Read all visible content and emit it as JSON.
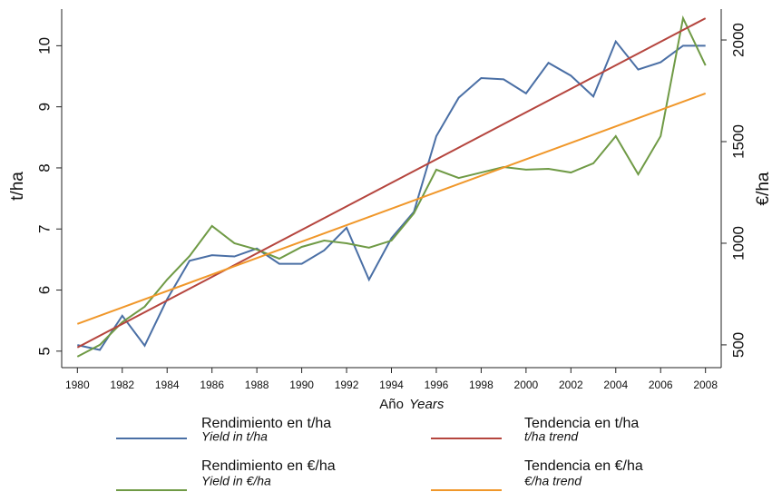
{
  "chart_data": {
    "type": "line",
    "x_label": "Año",
    "x_label_en": "Years",
    "y_label": "t/ha",
    "y2_label": "€/ha",
    "x": [
      1980,
      1981,
      1982,
      1983,
      1984,
      1985,
      1986,
      1987,
      1988,
      1989,
      1990,
      1991,
      1992,
      1993,
      1994,
      1995,
      1996,
      1997,
      1998,
      1999,
      2000,
      2001,
      2002,
      2003,
      2004,
      2005,
      2006,
      2007,
      2008
    ],
    "xlim": [
      1979.3,
      2008.7
    ],
    "xticks": [
      1980,
      1982,
      1984,
      1986,
      1988,
      1990,
      1992,
      1994,
      1996,
      1998,
      2000,
      2002,
      2004,
      2006,
      2008
    ],
    "ylim": [
      4.73,
      10.6
    ],
    "yticks": [
      5,
      6,
      7,
      8,
      9,
      10
    ],
    "y2lim": [
      388,
      2152
    ],
    "y2ticks": [
      500,
      1000,
      1500,
      2000
    ],
    "series": [
      {
        "name": "Rendimiento en t/ha",
        "name_en": "Yield in t/ha",
        "color": "#4a6fa5",
        "values": [
          5.1,
          5.02,
          5.58,
          5.09,
          5.85,
          6.48,
          6.57,
          6.55,
          6.68,
          6.43,
          6.43,
          6.65,
          7.02,
          6.17,
          6.85,
          7.28,
          8.52,
          9.15,
          9.47,
          9.45,
          9.22,
          9.72,
          9.51,
          9.17,
          10.07,
          9.61,
          9.73,
          10.0,
          10.0
        ]
      },
      {
        "name": "Rendimiento en €/ha",
        "name_en": "Yield in €/ha",
        "color": "#6f9a45",
        "axis": "y2",
        "values": [
          442,
          500,
          612,
          688,
          821,
          937,
          1085,
          1000,
          969,
          924,
          982,
          1013,
          1000,
          978,
          1013,
          1147,
          1362,
          1321,
          1348,
          1375,
          1362,
          1366,
          1348,
          1393,
          1527,
          1339,
          1527,
          2107,
          1875
        ]
      },
      {
        "name": "Tendencia en t/ha",
        "name_en": "t/ha trend",
        "color": "#b5453e",
        "x": [
          1980,
          2008
        ],
        "values": [
          5.06,
          10.45
        ]
      },
      {
        "name": "Tendencia en €/ha",
        "name_en": "€/ha trend",
        "color": "#f0972a",
        "axis": "y2",
        "x": [
          1980,
          2008
        ],
        "values": [
          603,
          1737
        ]
      }
    ]
  }
}
